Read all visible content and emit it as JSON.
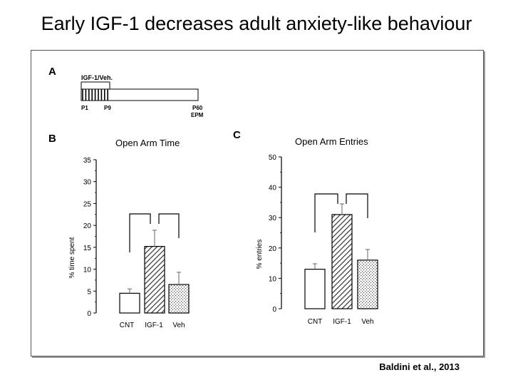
{
  "slide": {
    "title": "Early IGF-1 decreases adult anxiety-like behaviour",
    "citation": "Baldini et al., 2013"
  },
  "panels": {
    "a": "A",
    "b": "B",
    "c": "C"
  },
  "timeline": {
    "treatment_label": "IGF-1/Veh.",
    "start_label": "P1",
    "end_treatment_label": "P9",
    "test_day_label": "P60",
    "test_label": "EPM"
  },
  "colors": {
    "axis": "#000000",
    "border": "#555555"
  },
  "chart_data": [
    {
      "type": "bar",
      "title": "Open Arm Time",
      "ylabel": "% time spent",
      "xlabel": "",
      "categories": [
        "CNT",
        "IGF-1",
        "Veh"
      ],
      "values": [
        4.5,
        15.2,
        6.5
      ],
      "error_bars": [
        1.0,
        3.7,
        2.8
      ],
      "ylim": [
        0,
        35
      ],
      "yticks": [
        0,
        5,
        10,
        15,
        20,
        25,
        30,
        35
      ],
      "bar_fills": [
        "white",
        "diagonal-hatch",
        "dots"
      ],
      "significance_brackets": [
        [
          "CNT",
          "IGF-1"
        ],
        [
          "IGF-1",
          "Veh"
        ]
      ]
    },
    {
      "type": "bar",
      "title": "Open Arm Entries",
      "ylabel": "% entries",
      "xlabel": "",
      "categories": [
        "CNT",
        "IGF-1",
        "Veh"
      ],
      "values": [
        13,
        31,
        16
      ],
      "error_bars": [
        1.8,
        3.5,
        3.5
      ],
      "ylim": [
        0,
        50
      ],
      "yticks": [
        0,
        10,
        20,
        30,
        40,
        50
      ],
      "bar_fills": [
        "white",
        "diagonal-hatch",
        "dots"
      ],
      "significance_brackets": [
        [
          "CNT",
          "IGF-1"
        ],
        [
          "IGF-1",
          "Veh"
        ]
      ]
    }
  ]
}
